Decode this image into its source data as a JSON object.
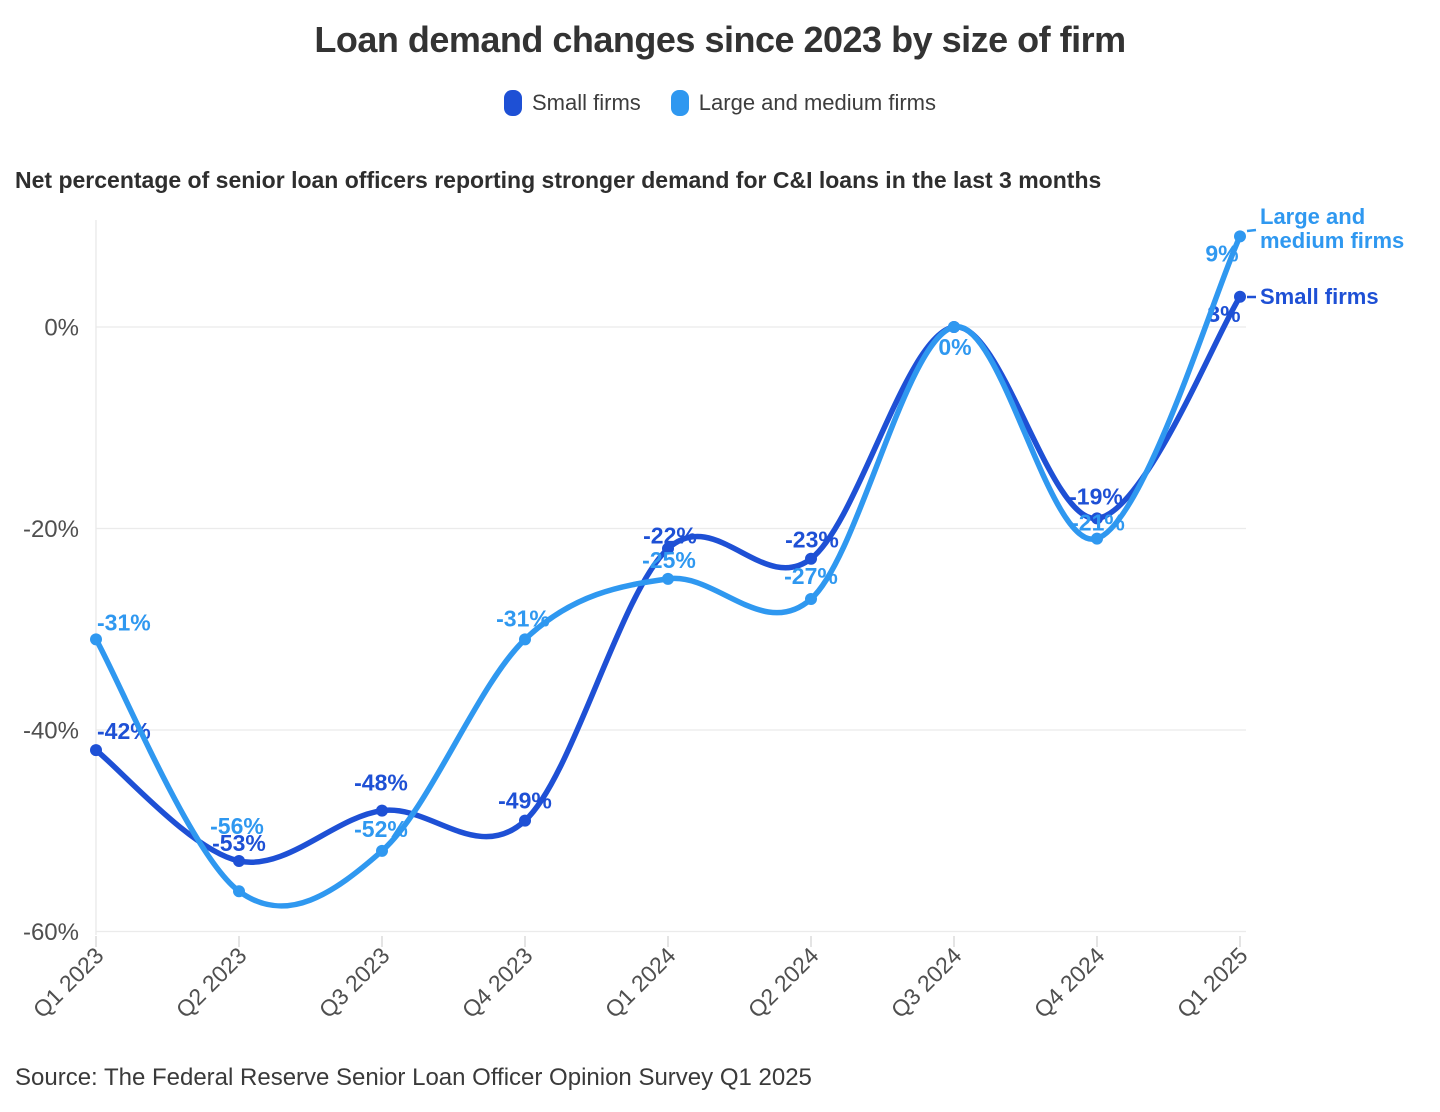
{
  "title": "Loan demand changes since 2023 by size of firm",
  "subtitle": "Net percentage of senior loan officers reporting stronger demand for C&I loans in the last 3 months",
  "source": "Source: The Federal Reserve Senior Loan Officer Opinion Survey Q1 2025",
  "legend": {
    "items": [
      {
        "label": "Small firms",
        "color": "#1e50d5"
      },
      {
        "label": "Large and medium firms",
        "color": "#2f98f0"
      }
    ]
  },
  "annotations": {
    "large_firms_label": "Large and\nmedium firms",
    "small_firms_label": "Small firms"
  },
  "chart_data": {
    "type": "line",
    "title": "Loan demand changes since 2023 by size of firm",
    "subtitle": "Net percentage of senior loan officers reporting stronger demand for C&I loans in the last 3 months",
    "categories": [
      "Q1 2023",
      "Q2 2023",
      "Q3 2023",
      "Q4 2023",
      "Q1 2024",
      "Q2 2024",
      "Q3 2024",
      "Q4 2024",
      "Q1 2025"
    ],
    "series": [
      {
        "name": "Small firms",
        "color": "#1e50d5",
        "values": [
          -42,
          -53,
          -48,
          -49,
          -22,
          -23,
          0,
          -19,
          3
        ],
        "point_labels": [
          "-42%",
          "-53%",
          "-48%",
          "-49%",
          "-22%",
          "-23%",
          null,
          "-19%",
          "3%"
        ]
      },
      {
        "name": "Large and medium firms",
        "color": "#2f98f0",
        "values": [
          -31,
          -56,
          -52,
          -31,
          -25,
          -27,
          0,
          -21,
          9
        ],
        "point_labels": [
          "-31%",
          "-56%",
          "-52%",
          "-31%",
          "-25%",
          "-27%",
          "0%",
          "-21%",
          "9%"
        ]
      }
    ],
    "yticks": [
      {
        "label": "0%",
        "value": 0
      },
      {
        "label": "-20%",
        "value": -20
      },
      {
        "label": "-40%",
        "value": -40
      },
      {
        "label": "-60%",
        "value": -60
      }
    ],
    "ylim": [
      -60,
      10
    ],
    "grid": "horizontal",
    "legend_position": "top",
    "unit": "%"
  }
}
